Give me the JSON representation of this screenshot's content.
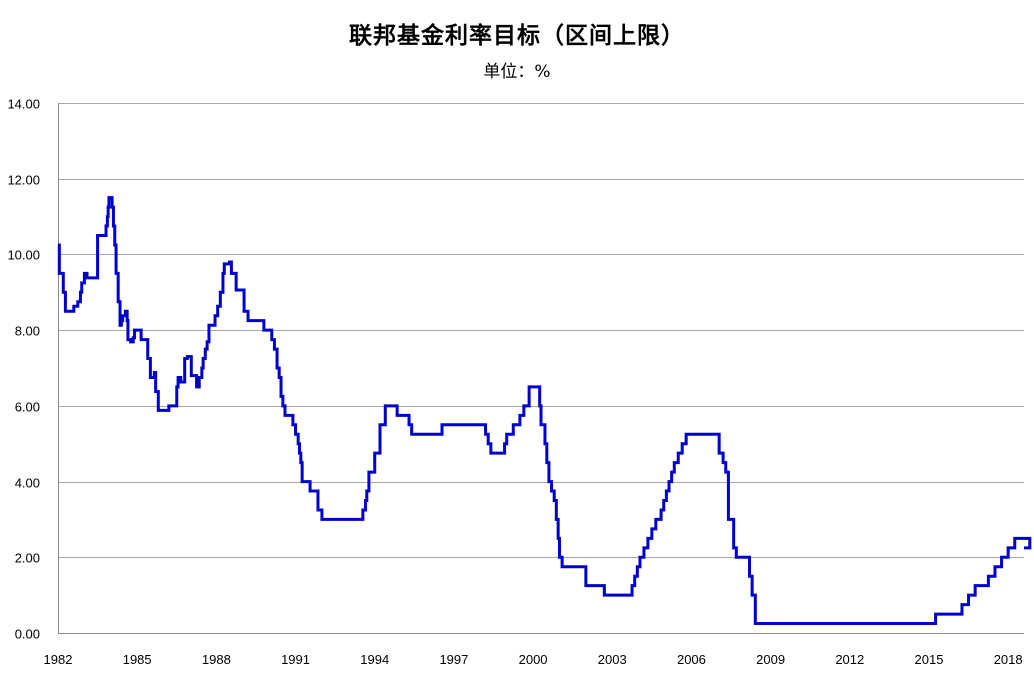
{
  "chart_data": {
    "type": "line",
    "title": "联邦基金利率目标（区间上限）",
    "subtitle": "单位：%",
    "xlabel": "",
    "ylabel": "",
    "xlim": [
      1982,
      2018.6
    ],
    "ylim": [
      0,
      14
    ],
    "y_ticks": [
      0,
      2,
      4,
      6,
      8,
      10,
      12,
      14
    ],
    "y_tick_labels": [
      "0.00",
      "2.00",
      "4.00",
      "6.00",
      "8.00",
      "10.00",
      "12.00",
      "14.00"
    ],
    "x_ticks": [
      1982,
      1985,
      1988,
      1991,
      1994,
      1997,
      2000,
      2003,
      2006,
      2009,
      2012,
      2015,
      2018
    ],
    "x_tick_labels": [
      "1982",
      "1985",
      "1988",
      "1991",
      "1994",
      "1997",
      "2000",
      "2003",
      "2006",
      "2009",
      "2012",
      "2015",
      "2018"
    ],
    "grid": "horizontal",
    "legend": "none",
    "line_color": "#0000cc",
    "grid_color": "#a6a6a6",
    "series": [
      {
        "step": true,
        "points": [
          [
            1982.0,
            10.25
          ],
          [
            1982.05,
            9.5
          ],
          [
            1982.2,
            9.0
          ],
          [
            1982.28,
            8.5
          ],
          [
            1982.6,
            8.63
          ],
          [
            1982.75,
            8.75
          ],
          [
            1982.85,
            9.0
          ],
          [
            1982.9,
            9.25
          ],
          [
            1983.0,
            9.5
          ],
          [
            1983.1,
            9.38
          ],
          [
            1983.5,
            9.38
          ],
          [
            1983.5,
            10.5
          ],
          [
            1983.8,
            10.5
          ],
          [
            1983.82,
            10.75
          ],
          [
            1983.87,
            11.0
          ],
          [
            1983.9,
            11.25
          ],
          [
            1983.93,
            11.5
          ],
          [
            1984.05,
            11.25
          ],
          [
            1984.1,
            10.75
          ],
          [
            1984.15,
            10.25
          ],
          [
            1984.2,
            9.5
          ],
          [
            1984.28,
            8.75
          ],
          [
            1984.35,
            8.13
          ],
          [
            1984.4,
            8.25
          ],
          [
            1984.45,
            8.38
          ],
          [
            1984.55,
            8.5
          ],
          [
            1984.62,
            8.25
          ],
          [
            1984.65,
            7.75
          ],
          [
            1984.75,
            7.69
          ],
          [
            1984.85,
            7.8
          ],
          [
            1984.9,
            8.0
          ],
          [
            1985.15,
            7.75
          ],
          [
            1985.4,
            7.25
          ],
          [
            1985.5,
            6.75
          ],
          [
            1985.65,
            6.88
          ],
          [
            1985.7,
            6.38
          ],
          [
            1985.8,
            5.88
          ],
          [
            1986.2,
            6.0
          ],
          [
            1986.5,
            6.5
          ],
          [
            1986.55,
            6.75
          ],
          [
            1986.65,
            6.63
          ],
          [
            1986.8,
            7.25
          ],
          [
            1986.9,
            7.3
          ],
          [
            1987.05,
            6.8
          ],
          [
            1987.25,
            6.5
          ],
          [
            1987.35,
            6.75
          ],
          [
            1987.45,
            7.0
          ],
          [
            1987.5,
            7.25
          ],
          [
            1987.58,
            7.5
          ],
          [
            1987.65,
            7.69
          ],
          [
            1987.72,
            8.13
          ],
          [
            1987.95,
            8.38
          ],
          [
            1988.05,
            8.63
          ],
          [
            1988.15,
            9.0
          ],
          [
            1988.25,
            9.5
          ],
          [
            1988.3,
            9.75
          ],
          [
            1988.5,
            9.8
          ],
          [
            1988.57,
            9.5
          ],
          [
            1988.75,
            9.06
          ],
          [
            1989.05,
            8.5
          ],
          [
            1989.2,
            8.25
          ],
          [
            1989.8,
            8.0
          ],
          [
            1990.1,
            7.75
          ],
          [
            1990.2,
            7.5
          ],
          [
            1990.3,
            7.0
          ],
          [
            1990.38,
            6.75
          ],
          [
            1990.45,
            6.25
          ],
          [
            1990.52,
            6.0
          ],
          [
            1990.6,
            5.75
          ],
          [
            1990.9,
            5.5
          ],
          [
            1991.0,
            5.25
          ],
          [
            1991.1,
            5.0
          ],
          [
            1991.15,
            4.75
          ],
          [
            1991.2,
            4.5
          ],
          [
            1991.25,
            4.0
          ],
          [
            1991.55,
            3.75
          ],
          [
            1991.85,
            3.25
          ],
          [
            1992.0,
            3.0
          ],
          [
            1993.55,
            3.25
          ],
          [
            1993.65,
            3.5
          ],
          [
            1993.7,
            3.75
          ],
          [
            1993.78,
            4.25
          ],
          [
            1994.0,
            4.75
          ],
          [
            1994.2,
            5.5
          ],
          [
            1994.4,
            6.0
          ],
          [
            1994.85,
            5.75
          ],
          [
            1995.3,
            5.5
          ],
          [
            1995.4,
            5.25
          ],
          [
            1996.55,
            5.5
          ],
          [
            1998.2,
            5.25
          ],
          [
            1998.3,
            5.0
          ],
          [
            1998.4,
            4.75
          ],
          [
            1998.92,
            5.0
          ],
          [
            1999.0,
            5.25
          ],
          [
            1999.25,
            5.5
          ],
          [
            1999.5,
            5.75
          ],
          [
            1999.65,
            6.0
          ],
          [
            1999.85,
            6.5
          ],
          [
            2000.25,
            6.0
          ],
          [
            2000.3,
            5.5
          ],
          [
            2000.45,
            5.0
          ],
          [
            2000.52,
            4.5
          ],
          [
            2000.6,
            4.0
          ],
          [
            2000.7,
            3.75
          ],
          [
            2000.8,
            3.5
          ],
          [
            2000.88,
            3.0
          ],
          [
            2000.95,
            2.5
          ],
          [
            2001.0,
            2.0
          ],
          [
            2001.1,
            1.75
          ],
          [
            2002.0,
            1.25
          ],
          [
            2002.7,
            1.0
          ],
          [
            2003.75,
            1.25
          ],
          [
            2003.85,
            1.5
          ],
          [
            2003.95,
            1.75
          ],
          [
            2004.05,
            2.0
          ],
          [
            2004.2,
            2.25
          ],
          [
            2004.35,
            2.5
          ],
          [
            2004.5,
            2.75
          ],
          [
            2004.65,
            3.0
          ],
          [
            2004.85,
            3.25
          ],
          [
            2004.95,
            3.5
          ],
          [
            2005.05,
            3.75
          ],
          [
            2005.15,
            4.0
          ],
          [
            2005.25,
            4.25
          ],
          [
            2005.35,
            4.5
          ],
          [
            2005.5,
            4.75
          ],
          [
            2005.65,
            5.0
          ],
          [
            2005.8,
            5.25
          ],
          [
            2007.05,
            4.75
          ],
          [
            2007.2,
            4.5
          ],
          [
            2007.3,
            4.25
          ],
          [
            2007.4,
            3.0
          ],
          [
            2007.6,
            2.25
          ],
          [
            2007.7,
            2.0
          ],
          [
            2008.2,
            1.5
          ],
          [
            2008.3,
            1.0
          ],
          [
            2008.42,
            0.25
          ],
          [
            2015.25,
            0.5
          ],
          [
            2016.25,
            0.75
          ],
          [
            2016.5,
            1.0
          ],
          [
            2016.75,
            1.25
          ],
          [
            2017.25,
            1.5
          ],
          [
            2017.5,
            1.75
          ],
          [
            2017.75,
            2.0
          ],
          [
            2018.0,
            2.25
          ],
          [
            2018.25,
            2.5
          ],
          [
            2018.82,
            2.25
          ]
        ]
      }
    ]
  }
}
